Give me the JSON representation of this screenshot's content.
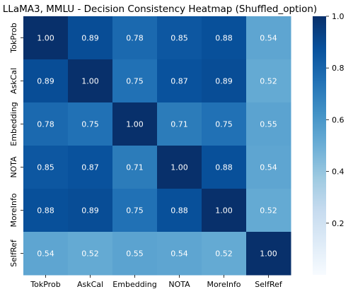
{
  "chart_data": {
    "type": "heatmap",
    "title": "LLaMA3, MMLU - Decision Consistency Heatmap (Shuffled_option)",
    "x_labels": [
      "TokProb",
      "AskCal",
      "Embedding",
      "NOTA",
      "MoreInfo",
      "SelfRef"
    ],
    "y_labels": [
      "TokProb",
      "AskCal",
      "Embedding",
      "NOTA",
      "MoreInfo",
      "SelfRef"
    ],
    "values": [
      [
        1.0,
        0.89,
        0.78,
        0.85,
        0.88,
        0.54
      ],
      [
        0.89,
        1.0,
        0.75,
        0.87,
        0.89,
        0.52
      ],
      [
        0.78,
        0.75,
        1.0,
        0.71,
        0.75,
        0.55
      ],
      [
        0.85,
        0.87,
        0.71,
        1.0,
        0.88,
        0.54
      ],
      [
        0.88,
        0.89,
        0.75,
        0.88,
        1.0,
        0.52
      ],
      [
        0.54,
        0.52,
        0.55,
        0.54,
        0.52,
        1.0
      ]
    ],
    "value_format": "2dp",
    "colormap": "Blues",
    "colorbar": {
      "range": [
        0,
        1.0
      ],
      "ticks": [
        0.2,
        0.4,
        0.6,
        0.8,
        1.0
      ],
      "tick_labels": [
        "0.2",
        "0.4",
        "0.6",
        "0.8",
        "1.0"
      ]
    },
    "grid": false,
    "legend": "none"
  }
}
